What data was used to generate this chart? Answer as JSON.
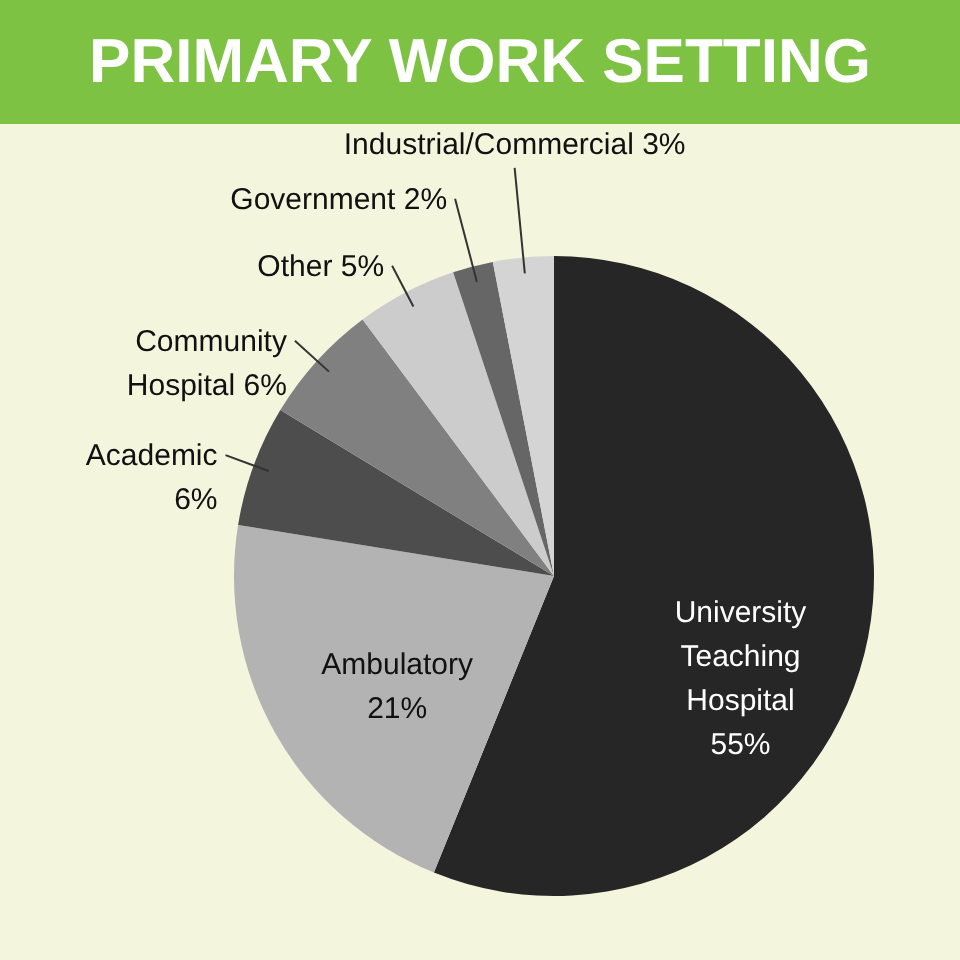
{
  "chart_data": {
    "type": "pie",
    "title": "PRIMARY WORK SETTING",
    "categories": [
      "University Teaching Hospital",
      "Ambulatory",
      "Academic",
      "Community Hospital",
      "Other",
      "Government",
      "Industrial/Commercial"
    ],
    "values": [
      55,
      21,
      6,
      6,
      5,
      2,
      3
    ],
    "value_labels": [
      "55%",
      "21%",
      "6%",
      "6%",
      "5%",
      "2%",
      "3%"
    ],
    "colors": [
      "#262626",
      "#b3b3b3",
      "#4d4d4d",
      "#808080",
      "#cccccc",
      "#666666",
      "#d4d4d4"
    ]
  }
}
